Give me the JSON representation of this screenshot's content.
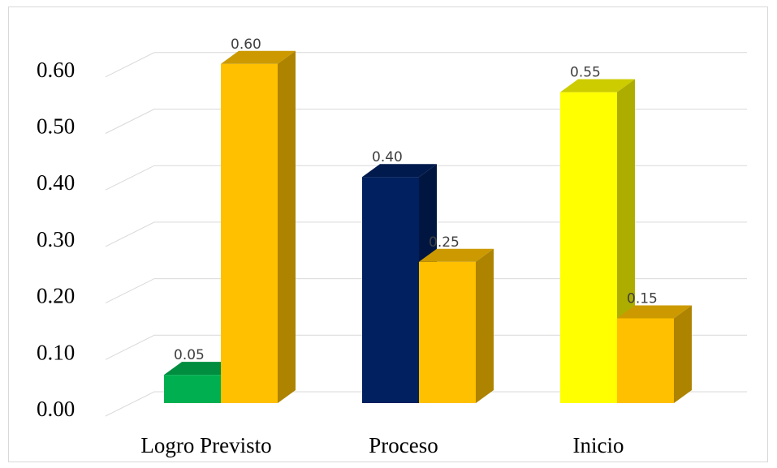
{
  "chart_data": {
    "type": "bar",
    "categories": [
      "Logro Previsto",
      "Proceso",
      "Inicio"
    ],
    "bars": [
      {
        "category_index": 0,
        "slot": 0,
        "value": 0.05,
        "label": "0.05",
        "color": "#00B050"
      },
      {
        "category_index": 0,
        "slot": 1,
        "value": 0.6,
        "label": "0.60",
        "color": "#FFC000"
      },
      {
        "category_index": 1,
        "slot": 0,
        "value": 0.4,
        "label": "0.40",
        "color": "#002060"
      },
      {
        "category_index": 1,
        "slot": 1,
        "value": 0.25,
        "label": "0.25",
        "color": "#FFC000"
      },
      {
        "category_index": 2,
        "slot": 0,
        "value": 0.55,
        "label": "0.55",
        "color": "#FFFF00"
      },
      {
        "category_index": 2,
        "slot": 1,
        "value": 0.15,
        "label": "0.15",
        "color": "#FFC000"
      }
    ],
    "y_ticks": [
      "0.00",
      "0.10",
      "0.20",
      "0.30",
      "0.40",
      "0.50",
      "0.60"
    ],
    "ylim": [
      0,
      0.6
    ],
    "grid": true,
    "legend": "none",
    "style": "3d-clustered-column",
    "title": "",
    "xlabel": "",
    "ylabel": ""
  }
}
